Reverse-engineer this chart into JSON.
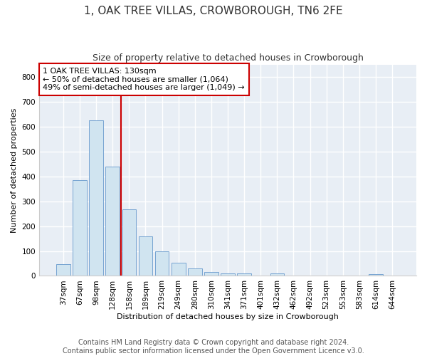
{
  "title": "1, OAK TREE VILLAS, CROWBOROUGH, TN6 2FE",
  "subtitle": "Size of property relative to detached houses in Crowborough",
  "xlabel": "Distribution of detached houses by size in Crowborough",
  "ylabel": "Number of detached properties",
  "categories": [
    "37sqm",
    "67sqm",
    "98sqm",
    "128sqm",
    "158sqm",
    "189sqm",
    "219sqm",
    "249sqm",
    "280sqm",
    "310sqm",
    "341sqm",
    "371sqm",
    "401sqm",
    "432sqm",
    "462sqm",
    "492sqm",
    "523sqm",
    "553sqm",
    "583sqm",
    "614sqm",
    "644sqm"
  ],
  "values": [
    47,
    385,
    625,
    440,
    268,
    158,
    98,
    52,
    30,
    17,
    10,
    10,
    0,
    10,
    0,
    0,
    0,
    0,
    0,
    8,
    0
  ],
  "bar_color": "#d0e4f0",
  "bar_edgecolor": "#6699cc",
  "vline_xidx": 3,
  "vline_color": "#cc0000",
  "annotation_text": "1 OAK TREE VILLAS: 130sqm\n← 50% of detached houses are smaller (1,064)\n49% of semi-detached houses are larger (1,049) →",
  "annotation_box_facecolor": "#ffffff",
  "annotation_box_edgecolor": "#cc0000",
  "ylim": [
    0,
    850
  ],
  "yticks": [
    0,
    100,
    200,
    300,
    400,
    500,
    600,
    700,
    800
  ],
  "footer_line1": "Contains HM Land Registry data © Crown copyright and database right 2024.",
  "footer_line2": "Contains public sector information licensed under the Open Government Licence v3.0.",
  "fig_bg_color": "#ffffff",
  "plot_bg_color": "#e8eef5",
  "grid_color": "#ffffff",
  "title_fontsize": 11,
  "subtitle_fontsize": 9,
  "axis_label_fontsize": 8,
  "tick_fontsize": 7.5,
  "annotation_fontsize": 8,
  "footer_fontsize": 7
}
